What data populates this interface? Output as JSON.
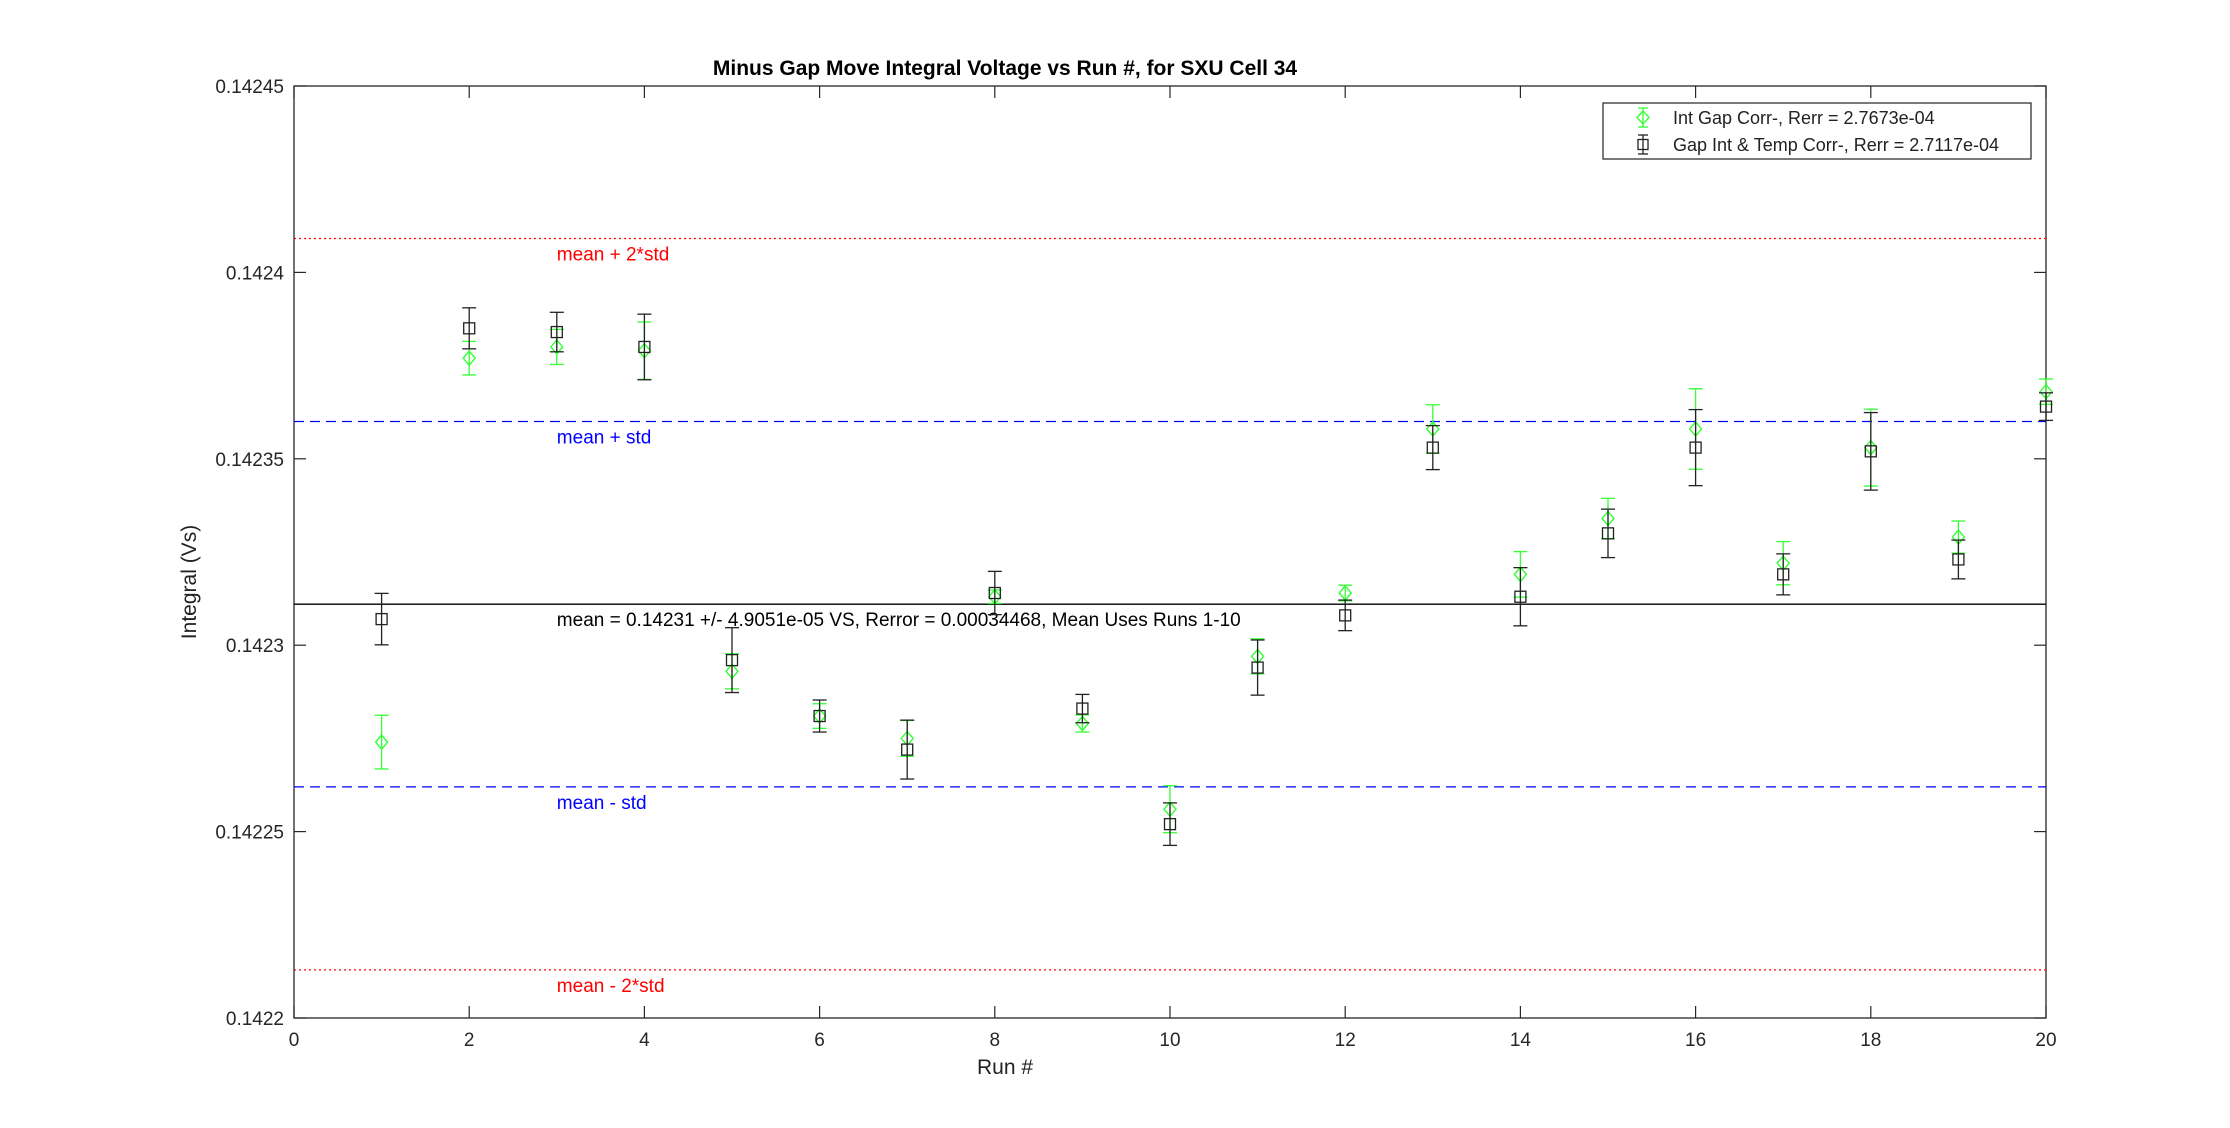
{
  "chart_data": {
    "type": "scatter",
    "title": "Minus Gap Move Integral Voltage vs Run #, for SXU Cell 34",
    "xlabel": "Run #",
    "ylabel": "Integral (Vs)",
    "xlim": [
      0,
      20
    ],
    "ylim": [
      0.1422,
      0.14245
    ],
    "x_ticks": [
      0,
      2,
      4,
      6,
      8,
      10,
      12,
      14,
      16,
      18,
      20
    ],
    "x_tick_labels": [
      "0",
      "2",
      "4",
      "6",
      "8",
      "10",
      "12",
      "14",
      "16",
      "18",
      "20"
    ],
    "y_ticks": [
      0.1422,
      0.14225,
      0.1423,
      0.14235,
      0.1424,
      0.14245
    ],
    "y_tick_labels": [
      "0.1422",
      "0.14225",
      "0.1423",
      "0.14235",
      "0.1424",
      "0.14245"
    ],
    "grid": false,
    "legend_position": "top-right",
    "series": [
      {
        "name": "Int Gap Corr-, Rerr = 2.7673e-04",
        "marker": "diamond",
        "color": "#33ff33",
        "x": [
          1,
          2,
          3,
          4,
          5,
          6,
          7,
          8,
          9,
          10,
          11,
          12,
          13,
          14,
          15,
          16,
          17,
          18,
          19,
          20
        ],
        "y": [
          0.142274,
          0.142377,
          0.14238,
          0.142379,
          0.142293,
          0.142281,
          0.142275,
          0.142313,
          0.142279,
          0.142256,
          0.142297,
          0.142314,
          0.142358,
          0.142319,
          0.142334,
          0.142358,
          0.142322,
          0.142353,
          0.142329,
          0.142368
        ],
        "err": [
          7.2e-06,
          4.5e-06,
          4.7e-06,
          7.7e-06,
          4.7e-06,
          3.3e-06,
          4.8e-06,
          1.8e-06,
          2.3e-06,
          6.3e-06,
          4.7e-06,
          2.1e-06,
          6.5e-06,
          6.1e-06,
          5.4e-06,
          1.08e-05,
          5.8e-06,
          1.03e-05,
          4.3e-06,
          3.4e-06
        ]
      },
      {
        "name": "Gap Int & Temp Corr-, Rerr = 2.7117e-04",
        "marker": "square",
        "color": "#222222",
        "x": [
          1,
          2,
          3,
          4,
          5,
          6,
          7,
          8,
          9,
          10,
          11,
          12,
          13,
          14,
          15,
          16,
          17,
          18,
          19,
          20
        ],
        "y": [
          0.142307,
          0.142385,
          0.142384,
          0.14238,
          0.142296,
          0.142281,
          0.142272,
          0.142314,
          0.142283,
          0.142252,
          0.142294,
          0.142308,
          0.142353,
          0.142313,
          0.14233,
          0.142353,
          0.142319,
          0.142352,
          0.142323,
          0.142364
        ],
        "err": [
          6.9e-06,
          5.5e-06,
          5.3e-06,
          8.8e-06,
          8.7e-06,
          4.3e-06,
          7.9e-06,
          5.8e-06,
          3.8e-06,
          5.7e-06,
          7.4e-06,
          4.1e-06,
          5.9e-06,
          7.8e-06,
          6.5e-06,
          1.02e-05,
          5.5e-06,
          1.04e-05,
          5.2e-06,
          3.7e-06
        ]
      }
    ],
    "reference_lines": [
      {
        "value": 0.1424091,
        "label": "mean + 2*std",
        "color": "#ff0000",
        "style": "dotted"
      },
      {
        "value": 0.14236,
        "label": "mean + std",
        "color": "#0000ff",
        "style": "dashed"
      },
      {
        "value": 0.142311,
        "label": "mean = 0.14231 +/- 4.9051e-05 VS, Rerror = 0.00034468, Mean Uses Runs 1-10",
        "color": "#000000",
        "style": "solid"
      },
      {
        "value": 0.142262,
        "label": "mean - std",
        "color": "#0000ff",
        "style": "dashed"
      },
      {
        "value": 0.1422129,
        "label": "mean - 2*std",
        "color": "#ff0000",
        "style": "dotted"
      }
    ]
  }
}
